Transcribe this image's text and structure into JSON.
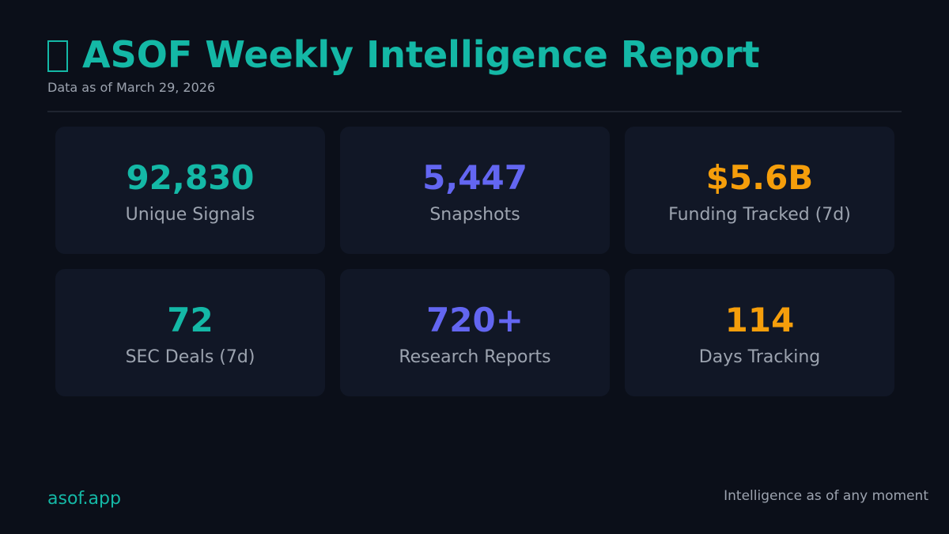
{
  "header": {
    "title": "ASOF Weekly Intelligence Report",
    "icon": "clipboard-icon",
    "subtitle": "Data as of March 29, 2026"
  },
  "colors": {
    "background": "#0b0f19",
    "card": "#111726",
    "teal": "#14b8a6",
    "indigo": "#6366f1",
    "amber": "#f59e0b",
    "muted": "#9ca3af"
  },
  "stats": [
    {
      "value": "92,830",
      "label": "Unique Signals",
      "color": "teal"
    },
    {
      "value": "5,447",
      "label": "Snapshots",
      "color": "indigo"
    },
    {
      "value": "$5.6B",
      "label": "Funding Tracked (7d)",
      "color": "amber"
    },
    {
      "value": "72",
      "label": "SEC Deals (7d)",
      "color": "teal"
    },
    {
      "value": "720+",
      "label": "Research Reports",
      "color": "indigo"
    },
    {
      "value": "114",
      "label": "Days Tracking",
      "color": "amber"
    }
  ],
  "footer": {
    "site": "asof.app",
    "tagline": "Intelligence as of any moment"
  }
}
